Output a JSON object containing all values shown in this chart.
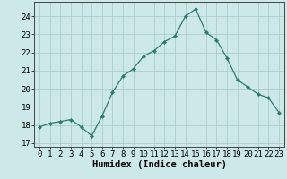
{
  "x": [
    0,
    1,
    2,
    3,
    4,
    5,
    6,
    7,
    8,
    9,
    10,
    11,
    12,
    13,
    14,
    15,
    16,
    17,
    18,
    19,
    20,
    21,
    22,
    23
  ],
  "y": [
    17.9,
    18.1,
    18.2,
    18.3,
    17.9,
    17.4,
    18.5,
    19.8,
    20.7,
    21.1,
    21.8,
    22.1,
    22.6,
    22.9,
    24.0,
    24.4,
    23.1,
    22.7,
    21.7,
    20.5,
    20.1,
    19.7,
    19.5,
    18.7
  ],
  "xlabel": "Humidex (Indice chaleur)",
  "line_color": "#2d7a6e",
  "marker_color": "#2d7a6e",
  "bg_color": "#cce8e8",
  "grid_color": "#aacfcf",
  "ylim": [
    16.8,
    24.8
  ],
  "xlim": [
    -0.5,
    23.5
  ],
  "yticks": [
    17,
    18,
    19,
    20,
    21,
    22,
    23,
    24
  ],
  "xticks": [
    0,
    1,
    2,
    3,
    4,
    5,
    6,
    7,
    8,
    9,
    10,
    11,
    12,
    13,
    14,
    15,
    16,
    17,
    18,
    19,
    20,
    21,
    22,
    23
  ],
  "xtick_labels": [
    "0",
    "1",
    "2",
    "3",
    "4",
    "5",
    "6",
    "7",
    "8",
    "9",
    "10",
    "11",
    "12",
    "13",
    "14",
    "15",
    "16",
    "17",
    "18",
    "19",
    "20",
    "21",
    "22",
    "23"
  ],
  "label_fontsize": 7.5,
  "tick_fontsize": 6.5
}
